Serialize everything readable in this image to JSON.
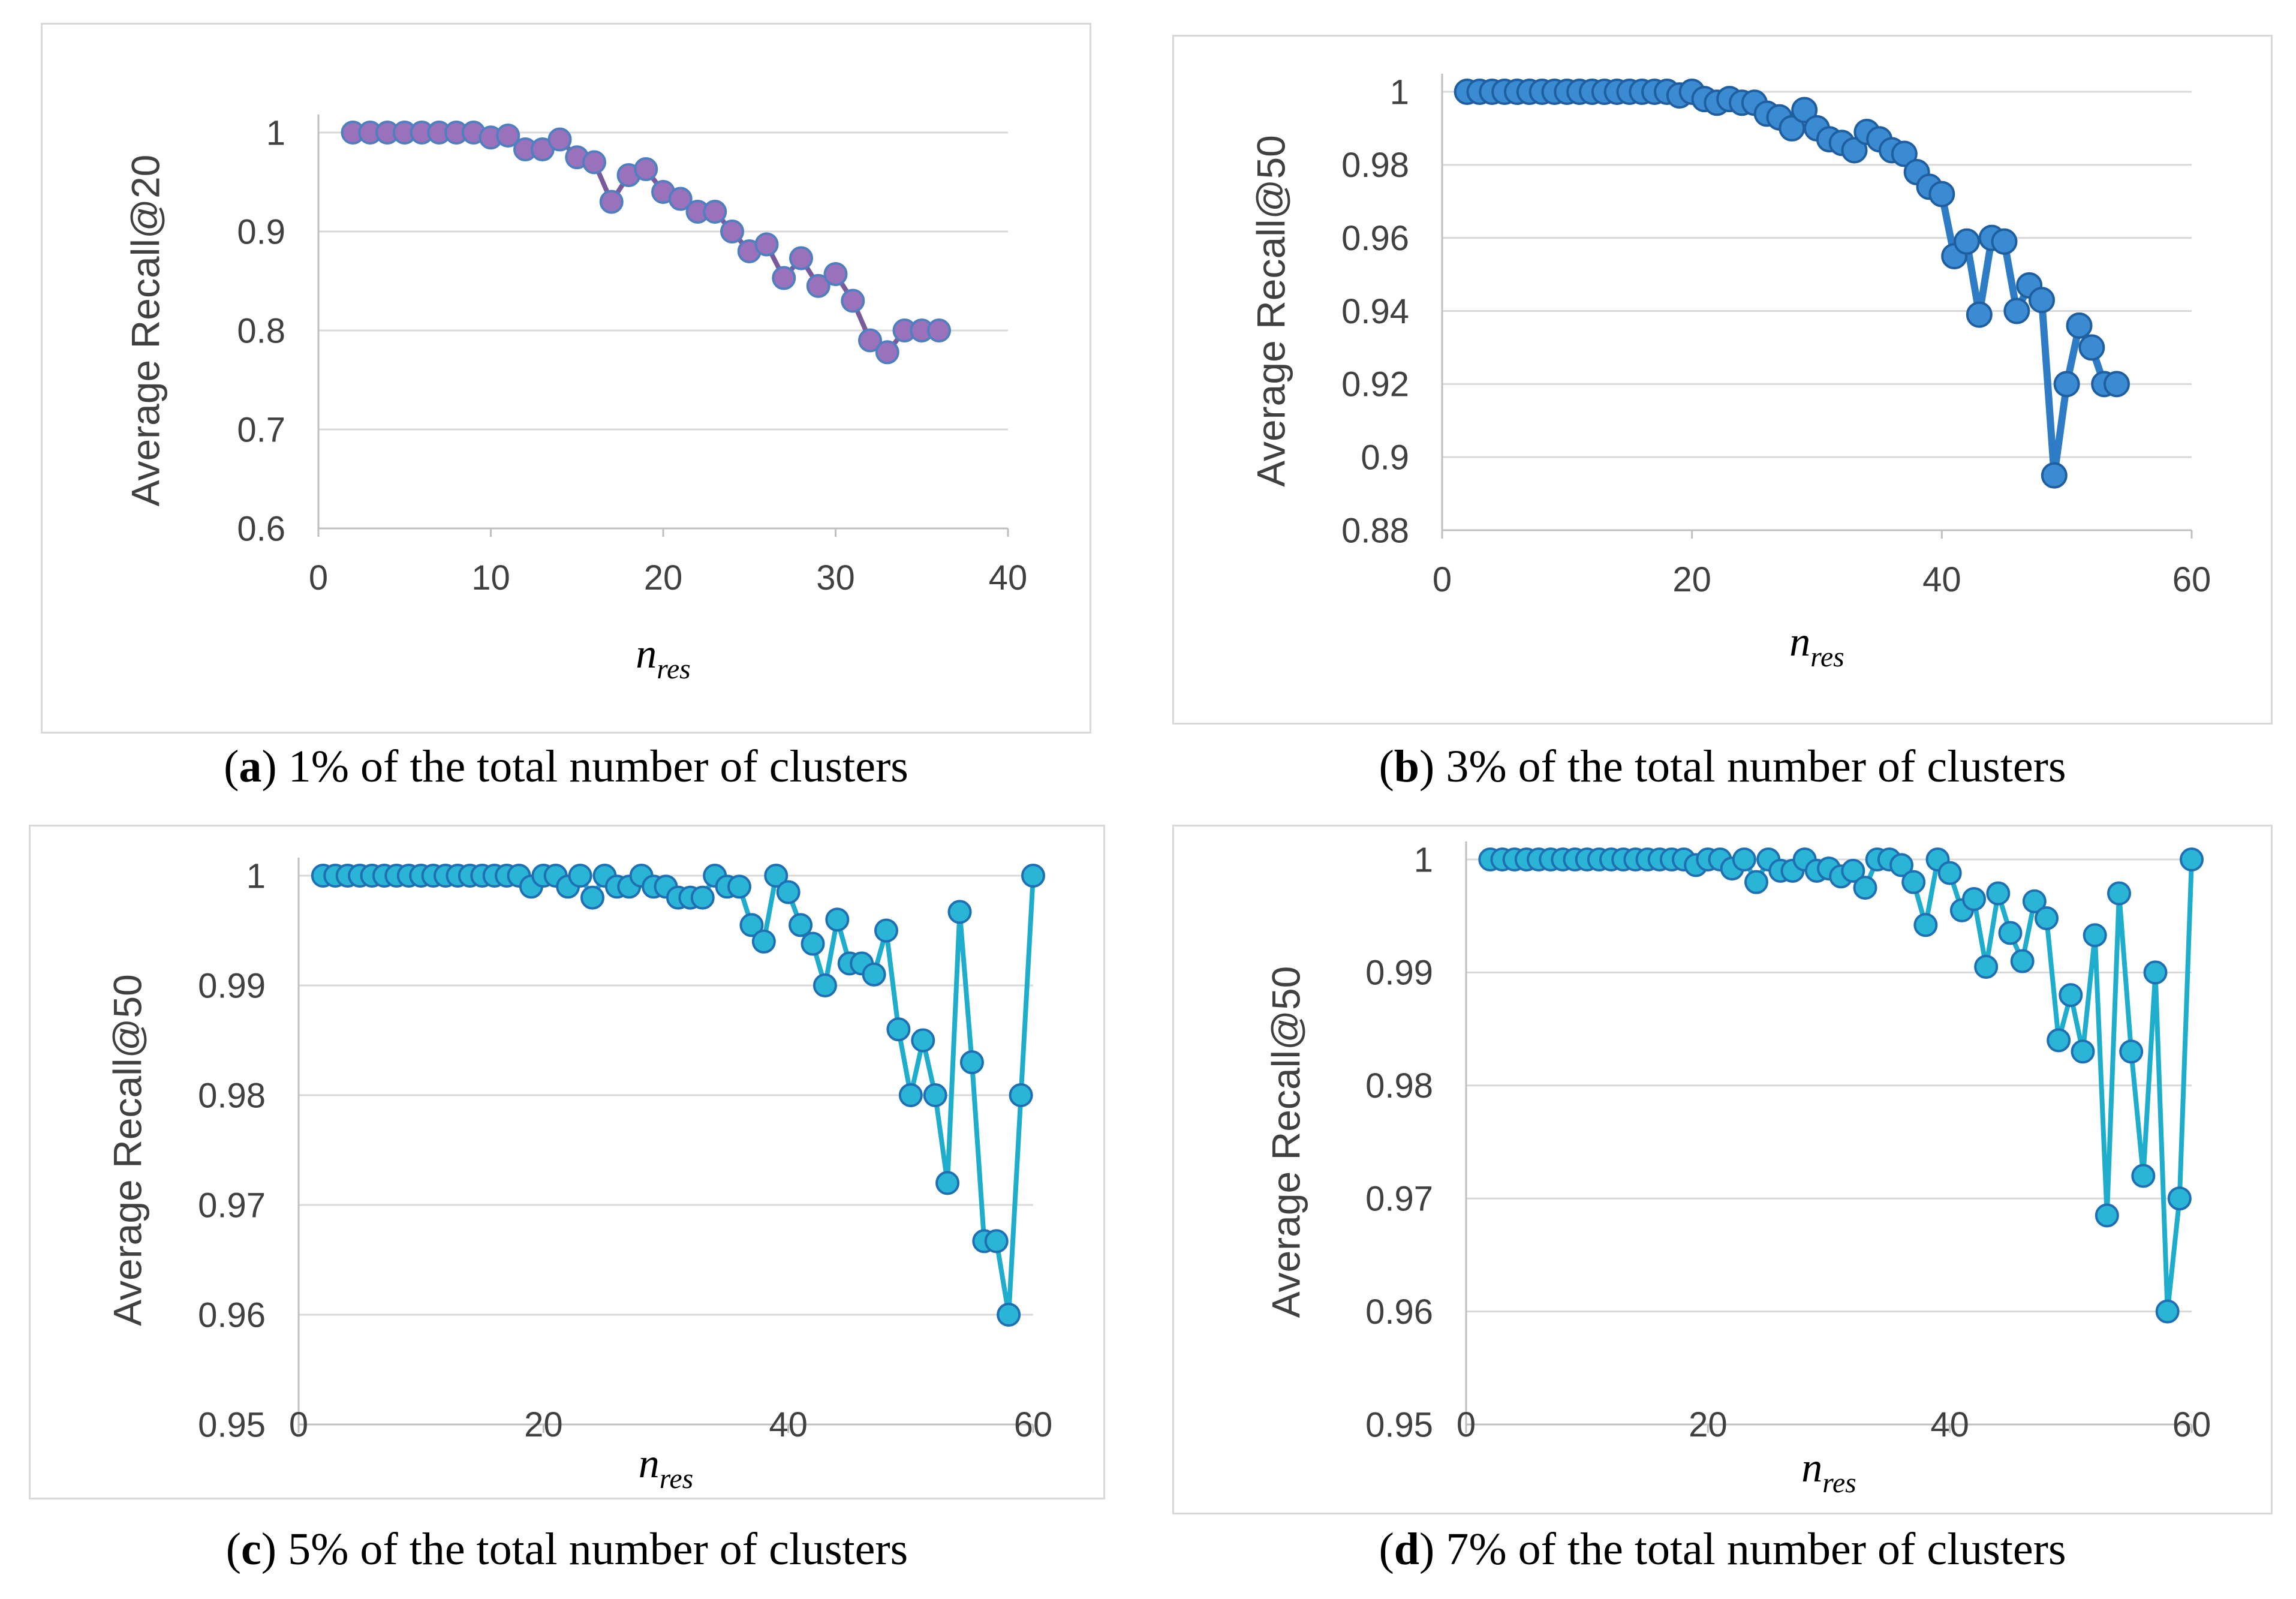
{
  "colors": {
    "panel_a_line": "#7a5a9a",
    "panel_a_marker": "#9a72bc",
    "panel_a_marker_edge": "#4f7fbf",
    "panel_b_line": "#2e7bc6",
    "panel_b_marker": "#3a8bd2",
    "panel_b_marker_edge": "#1f5f9f",
    "panel_cd_line": "#1eadcc",
    "panel_cd_marker": "#2ab4d6",
    "panel_cd_marker_edge": "#1f6fb3",
    "grid": "#d9d9d9",
    "axis": "#bfbfbf",
    "text": "#404040"
  },
  "chart_data": [
    {
      "id": "a",
      "type": "line",
      "ylabel": "Average Recall@20",
      "xlabel_base": "n",
      "xlabel_sub": "res",
      "xlim": [
        0,
        40
      ],
      "ylim": [
        0.6,
        1.0
      ],
      "xticks": [
        0,
        10,
        20,
        30,
        40
      ],
      "yticks": [
        0.6,
        0.7,
        0.8,
        0.9,
        1.0
      ],
      "ytick_labels": [
        "0.6",
        "0.7",
        "0.8",
        "0.9",
        "1"
      ],
      "grid": "horizontal",
      "caption_letter": "a",
      "caption_text": "1% of the total number of clusters",
      "x": [
        2,
        3,
        4,
        5,
        6,
        7,
        8,
        9,
        10,
        11,
        12,
        13,
        14,
        15,
        16,
        17,
        18,
        19,
        20,
        21,
        22,
        23,
        24,
        25,
        26,
        27,
        28,
        29,
        30,
        31,
        32,
        33,
        34,
        35,
        36
      ],
      "y": [
        1.0,
        1.0,
        1.0,
        1.0,
        1.0,
        1.0,
        1.0,
        1.0,
        0.995,
        0.997,
        0.983,
        0.983,
        0.993,
        0.975,
        0.97,
        0.93,
        0.957,
        0.963,
        0.94,
        0.933,
        0.92,
        0.92,
        0.9,
        0.88,
        0.887,
        0.853,
        0.873,
        0.845,
        0.857,
        0.83,
        0.79,
        0.778,
        0.8,
        0.8,
        0.8
      ]
    },
    {
      "id": "b",
      "type": "line",
      "ylabel": "Average Recall@50",
      "xlabel_base": "n",
      "xlabel_sub": "res",
      "xlim": [
        0,
        60
      ],
      "ylim": [
        0.88,
        1.0
      ],
      "xticks": [
        0,
        20,
        40,
        60
      ],
      "yticks": [
        0.88,
        0.9,
        0.92,
        0.94,
        0.96,
        0.98,
        1.0
      ],
      "ytick_labels": [
        "0.88",
        "0.9",
        "0.92",
        "0.94",
        "0.96",
        "0.98",
        "1"
      ],
      "grid": "horizontal",
      "caption_letter": "b",
      "caption_text": "3% of the total number of clusters",
      "x": [
        2,
        3,
        4,
        5,
        6,
        7,
        8,
        9,
        10,
        11,
        12,
        13,
        14,
        15,
        16,
        17,
        18,
        19,
        20,
        21,
        22,
        23,
        24,
        25,
        26,
        27,
        28,
        29,
        30,
        31,
        32,
        33,
        34,
        35,
        36,
        37,
        38,
        39,
        40,
        41,
        42,
        43,
        44,
        45,
        46,
        47,
        48,
        49,
        50,
        51,
        52,
        53,
        54
      ],
      "y": [
        1.0,
        1.0,
        1.0,
        1.0,
        1.0,
        1.0,
        1.0,
        1.0,
        1.0,
        1.0,
        1.0,
        1.0,
        1.0,
        1.0,
        1.0,
        1.0,
        1.0,
        0.999,
        1.0,
        0.998,
        0.997,
        0.998,
        0.997,
        0.997,
        0.994,
        0.993,
        0.99,
        0.995,
        0.99,
        0.987,
        0.986,
        0.984,
        0.989,
        0.987,
        0.984,
        0.983,
        0.978,
        0.974,
        0.972,
        0.955,
        0.959,
        0.939,
        0.96,
        0.959,
        0.94,
        0.947,
        0.943,
        0.895,
        0.92,
        0.936,
        0.93,
        0.92,
        0.92
      ]
    },
    {
      "id": "c",
      "type": "line",
      "ylabel": "Average Recall@50",
      "xlabel_base": "n",
      "xlabel_sub": "res",
      "xlim": [
        0,
        60
      ],
      "ylim": [
        0.95,
        1.0
      ],
      "xticks": [
        0,
        20,
        40,
        60
      ],
      "yticks": [
        0.95,
        0.96,
        0.97,
        0.98,
        0.99,
        1.0
      ],
      "ytick_labels": [
        "0.95",
        "0.96",
        "0.97",
        "0.98",
        "0.99",
        "1"
      ],
      "grid": "horizontal",
      "caption_letter": "c",
      "caption_text": "5% of the total number of clusters",
      "x": [
        2,
        3,
        4,
        5,
        6,
        7,
        8,
        9,
        10,
        11,
        12,
        13,
        14,
        15,
        16,
        17,
        18,
        19,
        20,
        21,
        22,
        23,
        24,
        25,
        26,
        27,
        28,
        29,
        30,
        31,
        32,
        33,
        34,
        35,
        36,
        37,
        38,
        39,
        40,
        41,
        42,
        43,
        44,
        45,
        46,
        47,
        48,
        49,
        50,
        51,
        52,
        53,
        54,
        55,
        56,
        57,
        58,
        59,
        60
      ],
      "y": [
        1.0,
        1.0,
        1.0,
        1.0,
        1.0,
        1.0,
        1.0,
        1.0,
        1.0,
        1.0,
        1.0,
        1.0,
        1.0,
        1.0,
        1.0,
        1.0,
        1.0,
        0.999,
        1.0,
        1.0,
        0.999,
        1.0,
        0.998,
        1.0,
        0.999,
        0.999,
        1.0,
        0.999,
        0.999,
        0.998,
        0.998,
        0.998,
        1.0,
        0.999,
        0.999,
        0.9955,
        0.994,
        1.0,
        0.9985,
        0.9955,
        0.9938,
        0.99,
        0.996,
        0.992,
        0.992,
        0.991,
        0.995,
        0.986,
        0.98,
        0.985,
        0.98,
        0.972,
        0.9967,
        0.983,
        0.9667,
        0.9667,
        0.96,
        0.98,
        1.0
      ]
    },
    {
      "id": "d",
      "type": "line",
      "ylabel": "Average Recall@50",
      "xlabel_base": "n",
      "xlabel_sub": "res",
      "xlim": [
        0,
        60
      ],
      "ylim": [
        0.95,
        1.0
      ],
      "xticks": [
        0,
        20,
        40,
        60
      ],
      "yticks": [
        0.95,
        0.96,
        0.97,
        0.98,
        0.99,
        1.0
      ],
      "ytick_labels": [
        "0.95",
        "0.96",
        "0.97",
        "0.98",
        "0.99",
        "1"
      ],
      "grid": "horizontal",
      "caption_letter": "d",
      "caption_text": "7% of the total number of clusters",
      "x": [
        2,
        3,
        4,
        5,
        6,
        7,
        8,
        9,
        10,
        11,
        12,
        13,
        14,
        15,
        16,
        17,
        18,
        19,
        20,
        21,
        22,
        23,
        24,
        25,
        26,
        27,
        28,
        29,
        30,
        31,
        32,
        33,
        34,
        35,
        36,
        37,
        38,
        39,
        40,
        41,
        42,
        43,
        44,
        45,
        46,
        47,
        48,
        49,
        50,
        51,
        52,
        53,
        54,
        55,
        56,
        57,
        58,
        59,
        60
      ],
      "y": [
        1.0,
        1.0,
        1.0,
        1.0,
        1.0,
        1.0,
        1.0,
        1.0,
        1.0,
        1.0,
        1.0,
        1.0,
        1.0,
        1.0,
        1.0,
        1.0,
        1.0,
        0.9995,
        1.0,
        1.0,
        0.9992,
        1.0,
        0.998,
        1.0,
        0.999,
        0.999,
        1.0,
        0.999,
        0.9992,
        0.9985,
        0.999,
        0.9975,
        1.0,
        1.0,
        0.9995,
        0.998,
        0.9942,
        1.0,
        0.9988,
        0.9955,
        0.9965,
        0.9905,
        0.997,
        0.9935,
        0.991,
        0.9963,
        0.9948,
        0.984,
        0.988,
        0.983,
        0.9933,
        0.9685,
        0.997,
        0.983,
        0.972,
        0.99,
        0.96,
        0.97,
        1.0
      ]
    }
  ]
}
